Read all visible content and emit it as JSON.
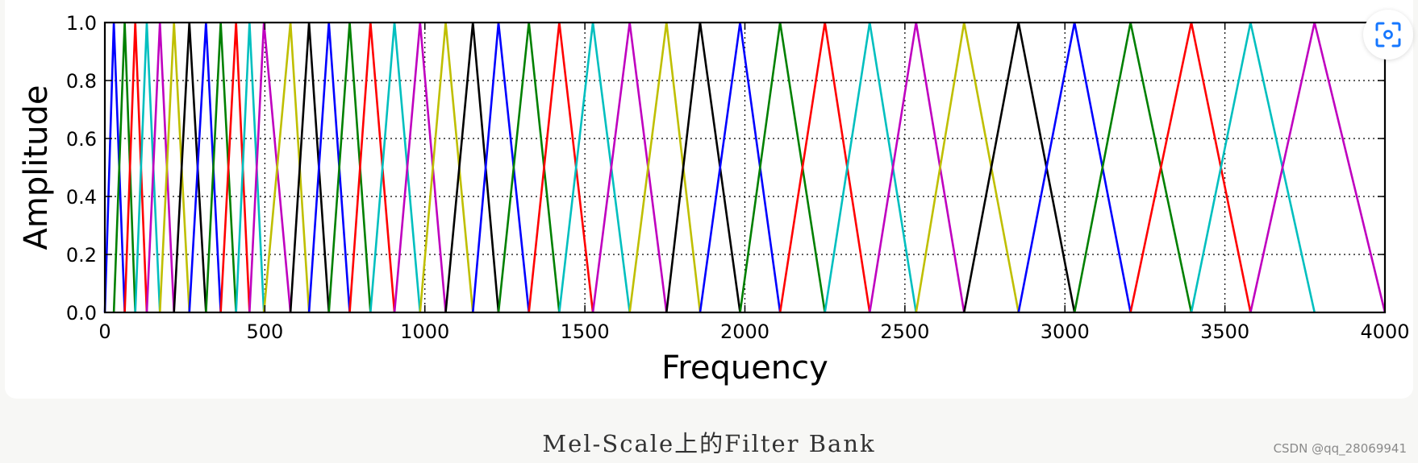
{
  "chart_data": {
    "type": "line",
    "title": "",
    "xlabel": "Frequency",
    "ylabel": "Amplitude",
    "xlim": [
      0,
      4000
    ],
    "ylim": [
      0.0,
      1.0
    ],
    "xticks": [
      "0",
      "500",
      "1000",
      "1500",
      "2000",
      "2500",
      "3000",
      "3500",
      "4000"
    ],
    "xtick_values": [
      0,
      500,
      1000,
      1500,
      2000,
      2500,
      3000,
      3500,
      4000
    ],
    "yticks": [
      "0.0",
      "0.2",
      "0.4",
      "0.6",
      "0.8",
      "1.0"
    ],
    "ytick_values": [
      0.0,
      0.2,
      0.4,
      0.6,
      0.8,
      1.0
    ],
    "grid": true,
    "grid_style": "dotted",
    "description_of_series": "triangular filters, each rises from 0 at the previous center to 1.0 at its center and falls back to 0 at the next center",
    "filter_centers": [
      0,
      28,
      62,
      95,
      131,
      172,
      216,
      264,
      316,
      362,
      410,
      452,
      497,
      580,
      638,
      700,
      765,
      830,
      905,
      985,
      1065,
      1150,
      1230,
      1325,
      1420,
      1525,
      1640,
      1755,
      1860,
      1985,
      2110,
      2250,
      2390,
      2535,
      2685,
      2855,
      3030,
      3205,
      3395,
      3580,
      3780,
      4000
    ],
    "color_cycle": [
      "#0000ff",
      "#008000",
      "#ff0000",
      "#00bfbf",
      "#bf00bf",
      "#bfbf00",
      "#000000"
    ]
  },
  "figure": {
    "caption": "Mel-Scale上的Filter Bank",
    "watermark": "CSDN @qq_28069941"
  },
  "toolbar": {
    "scan_icon": "scan-icon"
  }
}
